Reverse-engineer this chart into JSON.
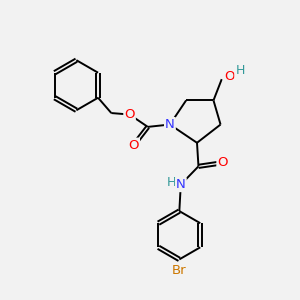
{
  "bg_color": "#f2f2f2",
  "atom_colors": {
    "C": "#000000",
    "N": "#3333ff",
    "O": "#ff0000",
    "Br": "#cc7700",
    "H": "#339999"
  },
  "bond_color": "#000000",
  "bond_lw": 1.4,
  "dbo": 0.055,
  "figsize": [
    3.0,
    3.0
  ],
  "dpi": 100
}
